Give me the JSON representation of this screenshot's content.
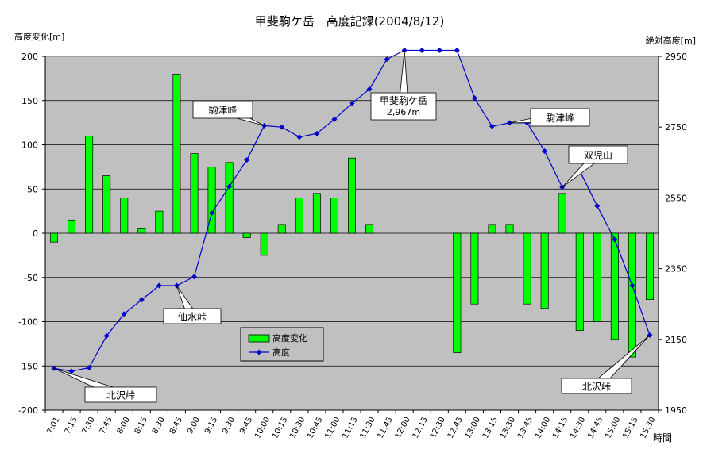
{
  "chart_data": {
    "type": "bar",
    "title": "甲斐駒ケ岳　高度記録(2004/8/12)",
    "ylabel_left": "高度変化[m]",
    "ylabel_right": "絶対高度[m]",
    "xlabel": "時間",
    "ylim_left": [
      -200,
      200
    ],
    "yticks_left": [
      -200,
      -150,
      -100,
      -50,
      0,
      50,
      100,
      150,
      200
    ],
    "ylim_right": [
      1950,
      2950
    ],
    "yticks_right": [
      1950,
      2150,
      2350,
      2550,
      2750,
      2950
    ],
    "grid": true,
    "legend_position": "bottom-center",
    "categories": [
      "7:01",
      "7:15",
      "7:30",
      "7:45",
      "8:00",
      "8:15",
      "8:30",
      "8:45",
      "9:00",
      "9:15",
      "9:30",
      "9:45",
      "10:00",
      "10:15",
      "10:30",
      "10:45",
      "11:00",
      "11:15",
      "11:30",
      "11:45",
      "12:00",
      "12:15",
      "12:30",
      "12:45",
      "13:00",
      "13:15",
      "13:30",
      "13:45",
      "14:00",
      "14:15",
      "14:30",
      "14:45",
      "15:00",
      "15:15",
      "15:30"
    ],
    "series": [
      {
        "name": "高度変化",
        "type": "bar",
        "axis": "left",
        "color": "#00FF00",
        "values": [
          -10,
          15,
          110,
          65,
          40,
          5,
          25,
          180,
          90,
          75,
          80,
          -5,
          -25,
          10,
          40,
          45,
          40,
          85,
          10,
          null,
          null,
          null,
          null,
          -135,
          -80,
          10,
          10,
          -80,
          -85,
          45,
          -110,
          -100,
          -120,
          -140,
          -75
        ]
      },
      {
        "name": "高度",
        "type": "line",
        "axis": "right",
        "color": "#0000CC",
        "values": [
          2068,
          2060,
          2070,
          2160,
          2222,
          2262,
          2302,
          2302,
          2327,
          2507,
          2582,
          2657,
          2754,
          2750,
          2722,
          2732,
          2772,
          2817,
          2857,
          2942,
          2967,
          2967,
          2967,
          2967,
          2832,
          2752,
          2762,
          2762,
          2682,
          2580,
          2627,
          2527,
          2432,
          2302,
          2162
        ]
      }
    ],
    "annotations": [
      {
        "text": "北沢峠",
        "series": "高度",
        "category": "7:01"
      },
      {
        "text": "仙水峠",
        "series": "高度",
        "category": "8:45"
      },
      {
        "text": "駒津峰",
        "series": "高度",
        "category": "10:00"
      },
      {
        "text": "甲斐駒ケ岳",
        "text2": "2,967m",
        "series": "高度",
        "category": "12:00"
      },
      {
        "text": "駒津峰",
        "series": "高度",
        "category": "13:30"
      },
      {
        "text": "双児山",
        "series": "高度",
        "category": "14:15"
      },
      {
        "text": "北沢峠",
        "series": "高度",
        "category": "15:30"
      }
    ]
  }
}
